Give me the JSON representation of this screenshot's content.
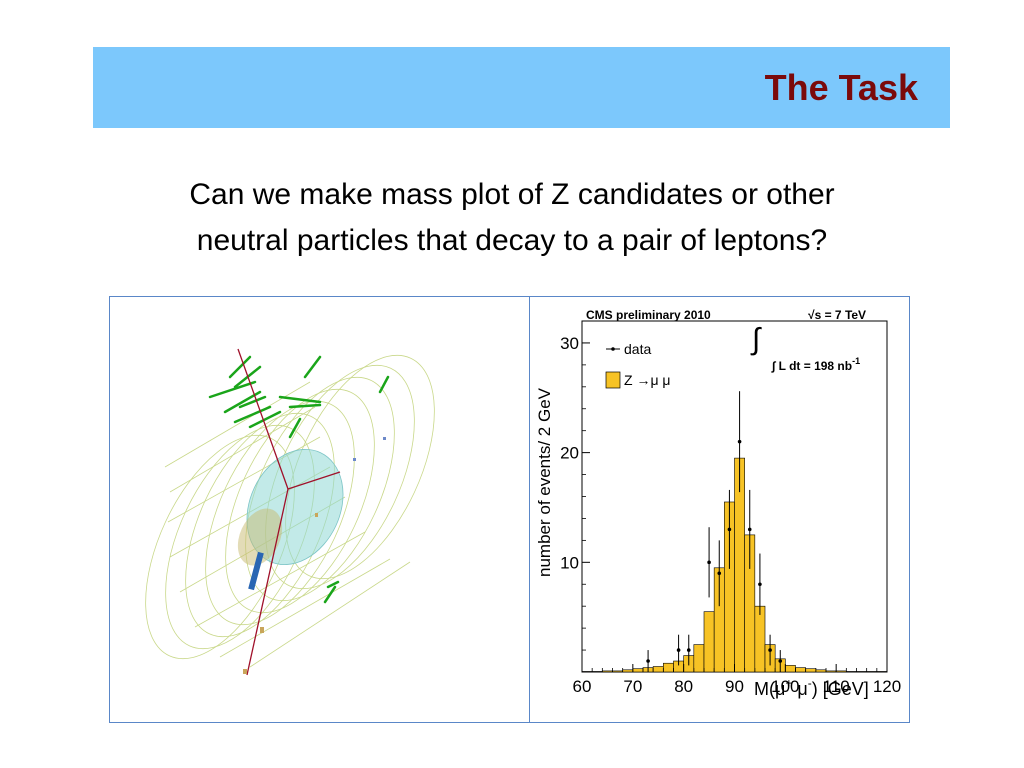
{
  "slide": {
    "title": "The Task",
    "question_line1": "Can we make mass plot of Z candidates or other",
    "question_line2": "neutral particles that decay to a pair of leptons?"
  },
  "colors": {
    "title_bar": "#7cc8fc",
    "title_text": "#7b0a0a",
    "histogram_fill": "#f7c325",
    "panel_border": "#5a87c8"
  },
  "event_display": {
    "icons": [
      "detector-cylinder",
      "muon-track",
      "muon-chamber-hit",
      "calorimeter-deposit"
    ]
  },
  "chart_data": {
    "type": "bar",
    "header_left": "CMS preliminary 2010",
    "header_right": "√s = 7 TeV",
    "lumi_label": "∫ L dt = 198 nb",
    "lumi_sup": "-1",
    "legend": [
      {
        "label": "data",
        "marker": "point-with-error"
      },
      {
        "label": "Z →μ μ",
        "marker": "filled-box"
      }
    ],
    "xlabel_prefix": "M(μ",
    "xlabel_sup1": "+",
    "xlabel_mid": " μ",
    "xlabel_sup2": "-",
    "xlabel_suffix": ") [GeV]",
    "ylabel": "number of events/ 2 GeV",
    "xlim": [
      60,
      120
    ],
    "ylim": [
      0,
      32
    ],
    "x_ticks": [
      60,
      70,
      80,
      90,
      100,
      110,
      120
    ],
    "y_ticks": [
      10,
      20,
      30
    ],
    "bin_width": 2,
    "bin_edges_start": 60,
    "mc_values": [
      0.05,
      0.05,
      0.1,
      0.1,
      0.2,
      0.3,
      0.4,
      0.5,
      0.8,
      1.0,
      1.5,
      2.5,
      5.5,
      9.5,
      15.5,
      19.5,
      12.5,
      6.0,
      2.5,
      1.2,
      0.6,
      0.4,
      0.3,
      0.2,
      0.1,
      0.1,
      0.05,
      0.05,
      0.05,
      0.05
    ],
    "data_points": [
      {
        "x": 73,
        "y": 1,
        "err": 1
      },
      {
        "x": 79,
        "y": 2,
        "err": 1.4
      },
      {
        "x": 81,
        "y": 2,
        "err": 1.4
      },
      {
        "x": 85,
        "y": 10,
        "err": 3.2
      },
      {
        "x": 87,
        "y": 9,
        "err": 3
      },
      {
        "x": 89,
        "y": 13,
        "err": 3.6
      },
      {
        "x": 91,
        "y": 21,
        "err": 4.6
      },
      {
        "x": 93,
        "y": 13,
        "err": 3.6
      },
      {
        "x": 95,
        "y": 8,
        "err": 2.8
      },
      {
        "x": 97,
        "y": 2,
        "err": 1.4
      },
      {
        "x": 99,
        "y": 1,
        "err": 1
      }
    ]
  }
}
